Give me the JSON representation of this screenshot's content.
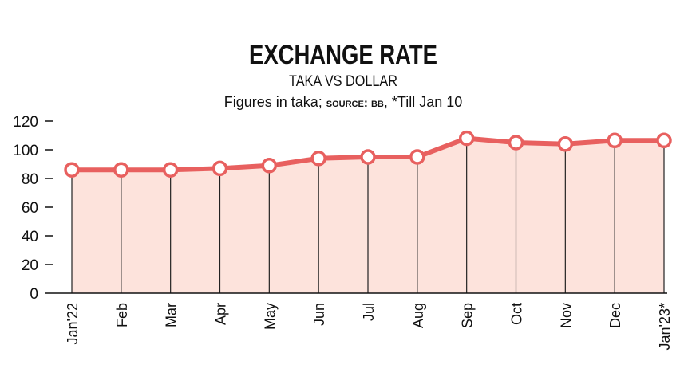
{
  "chart_data": {
    "type": "line",
    "title": "EXCHANGE RATE",
    "subtitle": "TAKA VS DOLLAR",
    "note": [
      "Figures in taka; ",
      "source: bb",
      ", *Till Jan 10"
    ],
    "categories": [
      "Jan'22",
      "Feb",
      "Mar",
      "Apr",
      "May",
      "Jun",
      "Jul",
      "Aug",
      "Sep",
      "Oct",
      "Nov",
      "Dec",
      "Jan'23*"
    ],
    "values": [
      86,
      86,
      86,
      87,
      89,
      94,
      95,
      95,
      108,
      105,
      104,
      106.5,
      106.5
    ],
    "color": "#e8605f",
    "fill": "#fde3dc",
    "ylim": [
      0,
      120
    ],
    "yticks": [
      0,
      20,
      40,
      60,
      80,
      100,
      120
    ]
  }
}
